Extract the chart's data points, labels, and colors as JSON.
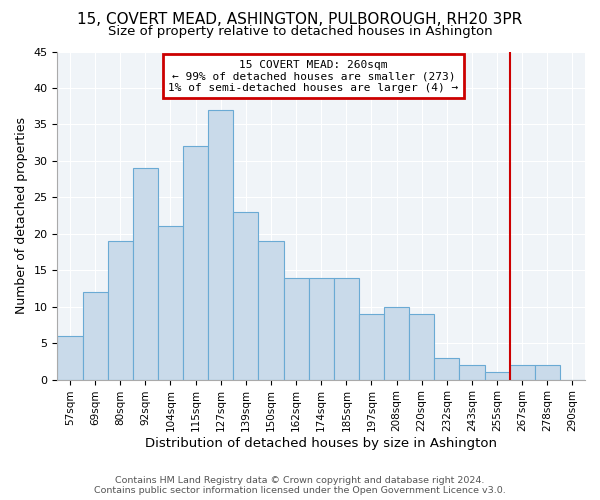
{
  "title": "15, COVERT MEAD, ASHINGTON, PULBOROUGH, RH20 3PR",
  "subtitle": "Size of property relative to detached houses in Ashington",
  "xlabel": "Distribution of detached houses by size in Ashington",
  "ylabel": "Number of detached properties",
  "bar_labels": [
    "57sqm",
    "69sqm",
    "80sqm",
    "92sqm",
    "104sqm",
    "115sqm",
    "127sqm",
    "139sqm",
    "150sqm",
    "162sqm",
    "174sqm",
    "185sqm",
    "197sqm",
    "208sqm",
    "220sqm",
    "232sqm",
    "243sqm",
    "255sqm",
    "267sqm",
    "278sqm",
    "290sqm"
  ],
  "bar_values": [
    6,
    12,
    19,
    29,
    21,
    32,
    37,
    23,
    19,
    14,
    14,
    14,
    9,
    10,
    9,
    3,
    2,
    1,
    2,
    2,
    0
  ],
  "bar_color": "#c9daea",
  "bar_edge_color": "#6aaad4",
  "red_line_index": 17.5,
  "annotation_line_color": "#cc0000",
  "annotation_text_line1": "15 COVERT MEAD: 260sqm",
  "annotation_text_line2": "← 99% of detached houses are smaller (273)",
  "annotation_text_line3": "1% of semi-detached houses are larger (4) →",
  "annotation_box_color": "#cc0000",
  "footer_text": "Contains HM Land Registry data © Crown copyright and database right 2024.\nContains public sector information licensed under the Open Government Licence v3.0.",
  "ylim": [
    0,
    45
  ],
  "bg_color": "#ffffff",
  "plot_bg_color": "#f0f4f8",
  "grid_color": "#ffffff",
  "title_fontsize": 11,
  "subtitle_fontsize": 9.5
}
